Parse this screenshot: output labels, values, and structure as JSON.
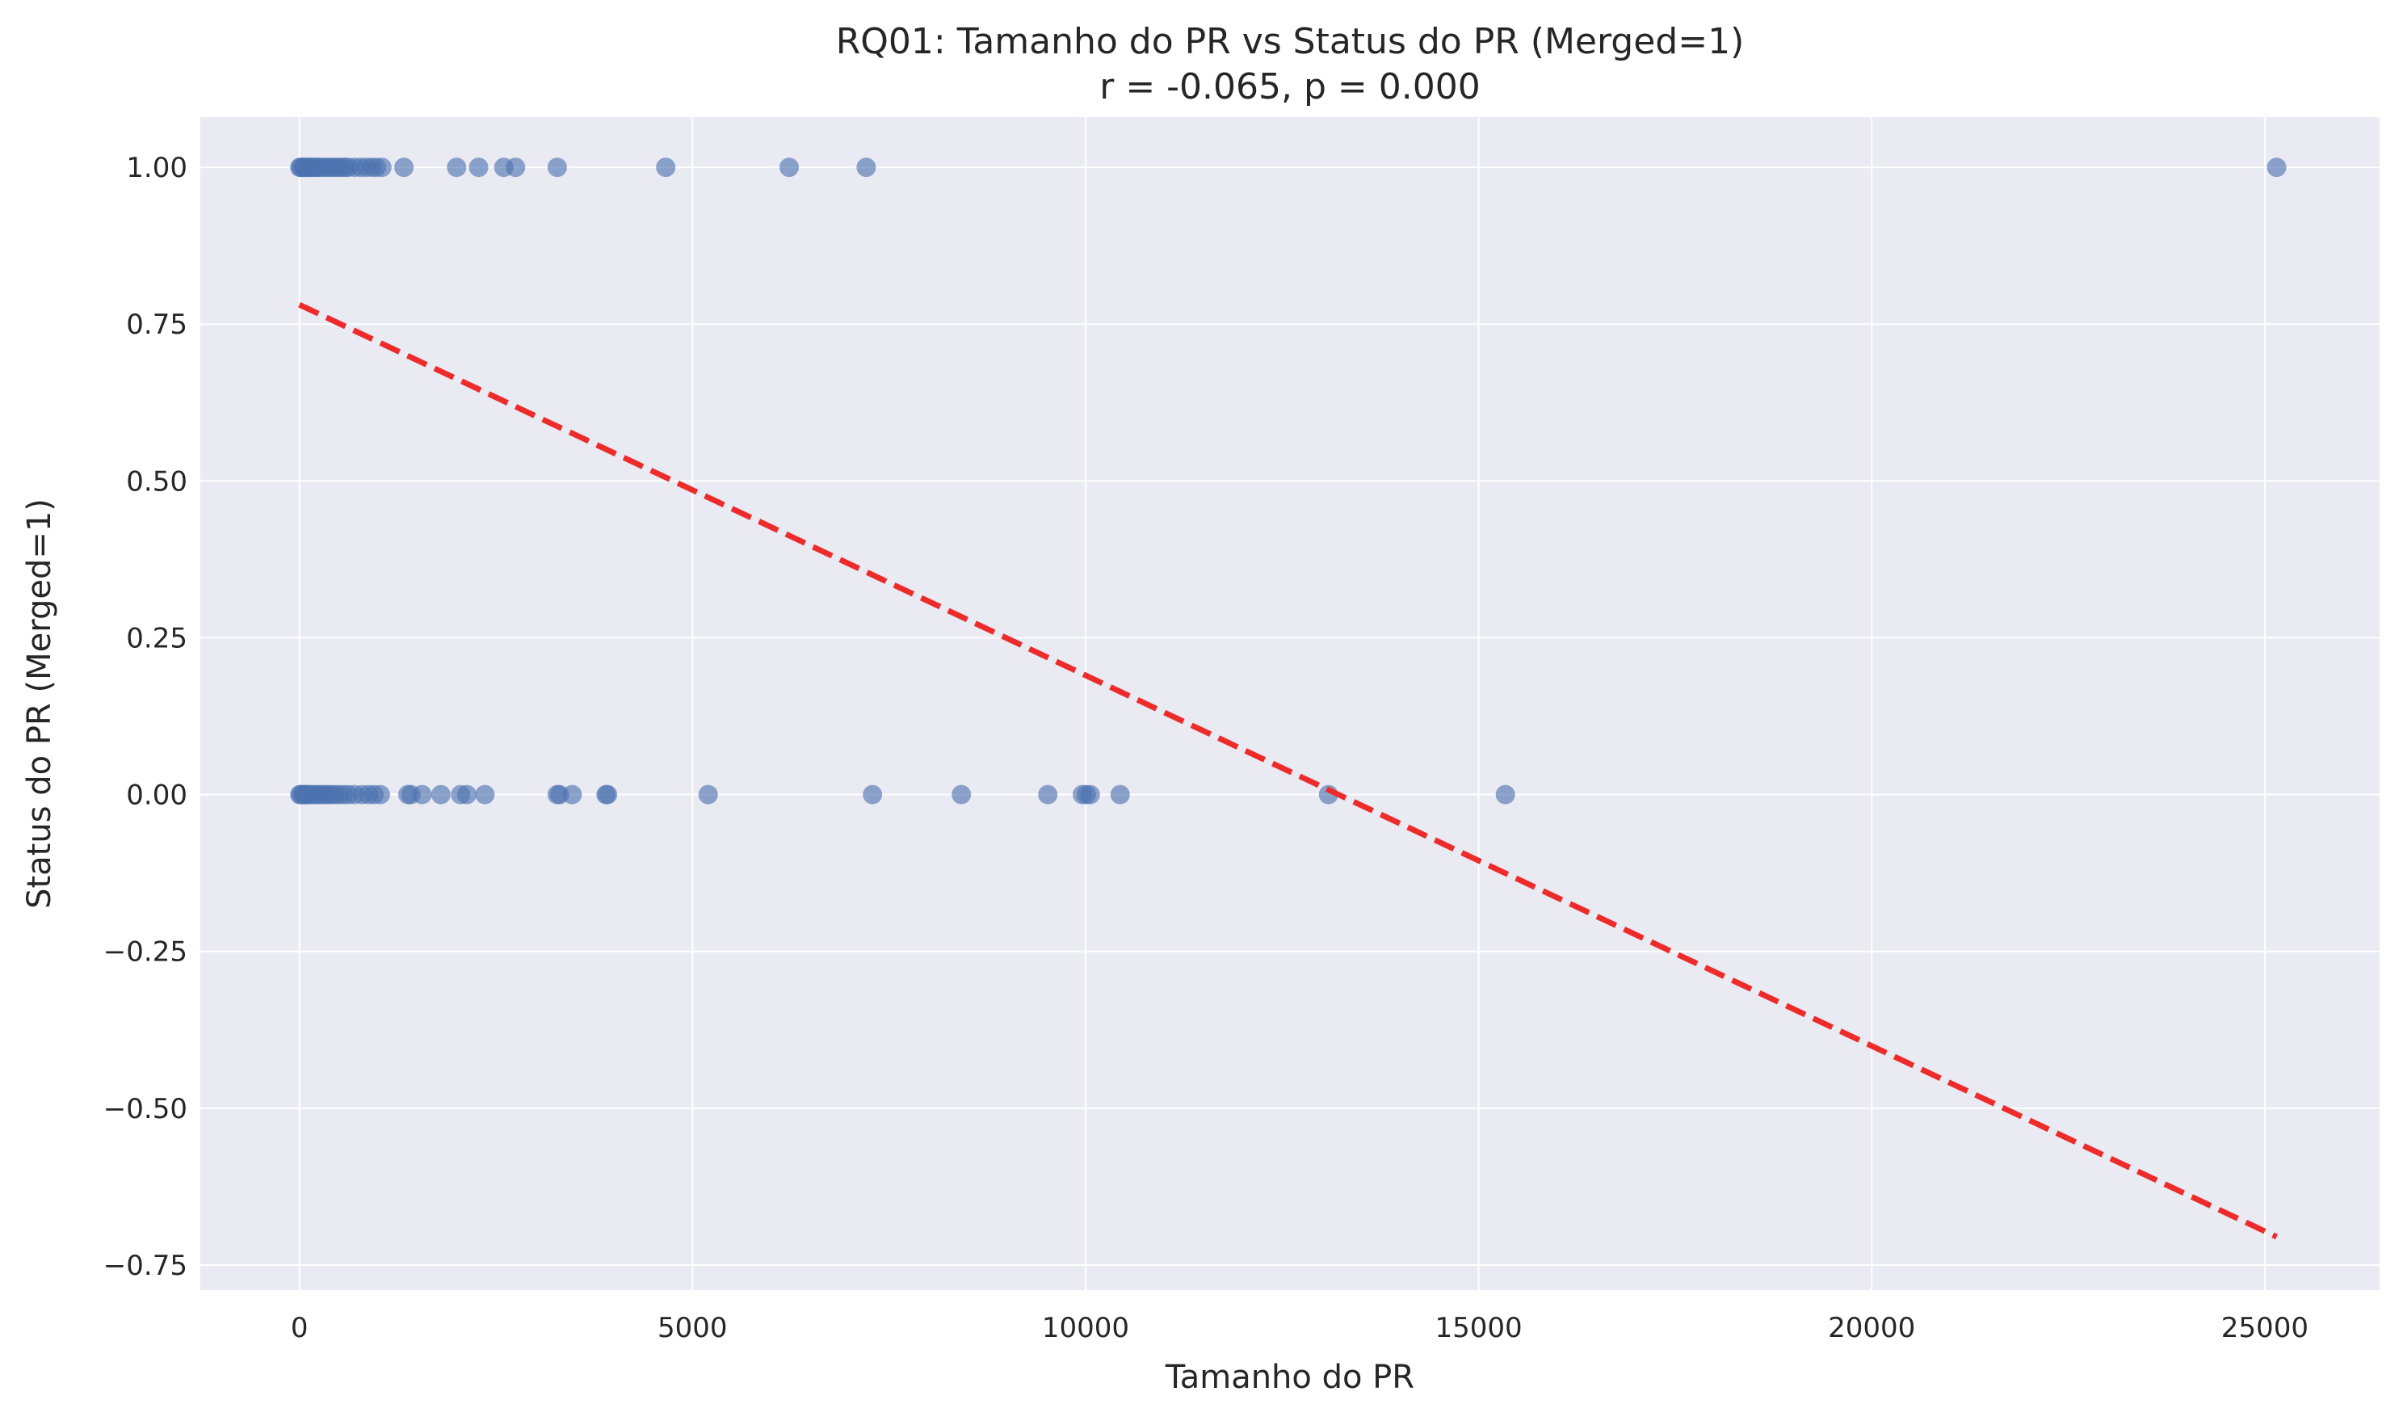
{
  "chart_data": {
    "type": "scatter",
    "title": "RQ01: Tamanho do PR vs Status do PR (Merged=1)",
    "subtitle": "r = -0.065, p = 0.000",
    "xlabel": "Tamanho do PR",
    "ylabel": "Status do PR (Merged=1)",
    "xlim": [
      -1260,
      26460
    ],
    "ylim": [
      -0.79,
      1.08
    ],
    "grid": true,
    "point_color": "#4c72b0",
    "trend_color": "#ee2b2b",
    "background_color": "#eaeaf2",
    "x_ticks": [
      0,
      5000,
      10000,
      15000,
      20000,
      25000
    ],
    "x_tick_labels": [
      "0",
      "5000",
      "10000",
      "15000",
      "20000",
      "25000"
    ],
    "y_ticks": [
      1.0,
      0.75,
      0.5,
      0.25,
      0.0,
      -0.25,
      -0.5,
      -0.75
    ],
    "y_tick_labels": [
      "1.00",
      "0.75",
      "0.50",
      "0.25",
      "0.00",
      "−0.25",
      "−0.50",
      "−0.75"
    ],
    "series": [
      {
        "kind": "points",
        "points": [
          [
            5,
            1
          ],
          [
            20,
            1
          ],
          [
            40,
            1
          ],
          [
            60,
            1
          ],
          [
            80,
            1
          ],
          [
            100,
            1
          ],
          [
            120,
            1
          ],
          [
            150,
            1
          ],
          [
            180,
            1
          ],
          [
            200,
            1
          ],
          [
            230,
            1
          ],
          [
            260,
            1
          ],
          [
            300,
            1
          ],
          [
            340,
            1
          ],
          [
            380,
            1
          ],
          [
            420,
            1
          ],
          [
            460,
            1
          ],
          [
            500,
            1
          ],
          [
            540,
            1
          ],
          [
            580,
            1
          ],
          [
            620,
            1
          ],
          [
            700,
            1
          ],
          [
            780,
            1
          ],
          [
            850,
            1
          ],
          [
            920,
            1
          ],
          [
            980,
            1
          ],
          [
            1050,
            1
          ],
          [
            1330,
            1
          ],
          [
            2000,
            1
          ],
          [
            2280,
            1
          ],
          [
            2600,
            1
          ],
          [
            2750,
            1
          ],
          [
            3280,
            1
          ],
          [
            4660,
            1
          ],
          [
            6230,
            1
          ],
          [
            7210,
            1
          ],
          [
            25150,
            1
          ],
          [
            5,
            0
          ],
          [
            20,
            0
          ],
          [
            40,
            0
          ],
          [
            60,
            0
          ],
          [
            80,
            0
          ],
          [
            100,
            0
          ],
          [
            130,
            0
          ],
          [
            160,
            0
          ],
          [
            200,
            0
          ],
          [
            240,
            0
          ],
          [
            280,
            0
          ],
          [
            320,
            0
          ],
          [
            360,
            0
          ],
          [
            400,
            0
          ],
          [
            450,
            0
          ],
          [
            500,
            0
          ],
          [
            560,
            0
          ],
          [
            620,
            0
          ],
          [
            700,
            0
          ],
          [
            800,
            0
          ],
          [
            880,
            0
          ],
          [
            950,
            0
          ],
          [
            1030,
            0
          ],
          [
            1380,
            0
          ],
          [
            1420,
            0
          ],
          [
            1560,
            0
          ],
          [
            1800,
            0
          ],
          [
            2050,
            0
          ],
          [
            2130,
            0
          ],
          [
            2360,
            0
          ],
          [
            3280,
            0
          ],
          [
            3310,
            0
          ],
          [
            3470,
            0
          ],
          [
            3900,
            0
          ],
          [
            3920,
            0
          ],
          [
            5200,
            0
          ],
          [
            7290,
            0
          ],
          [
            8420,
            0
          ],
          [
            9520,
            0
          ],
          [
            9960,
            0
          ],
          [
            10010,
            0
          ],
          [
            10060,
            0
          ],
          [
            10440,
            0
          ],
          [
            13090,
            0
          ],
          [
            15340,
            0
          ]
        ]
      },
      {
        "kind": "trend",
        "x": [
          0,
          25150
        ],
        "y": [
          0.781,
          -0.705
        ]
      }
    ]
  }
}
